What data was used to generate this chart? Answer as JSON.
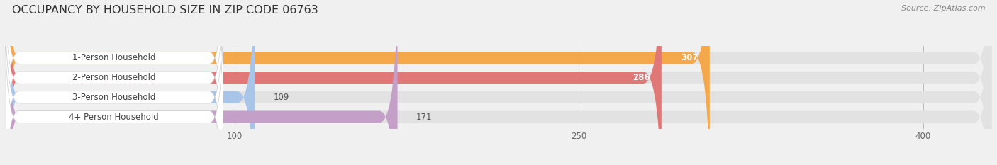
{
  "title": "OCCUPANCY BY HOUSEHOLD SIZE IN ZIP CODE 06763",
  "source": "Source: ZipAtlas.com",
  "categories": [
    "1-Person Household",
    "2-Person Household",
    "3-Person Household",
    "4+ Person Household"
  ],
  "values": [
    307,
    286,
    109,
    171
  ],
  "bar_colors": [
    "#F5A84A",
    "#E07878",
    "#A8C4E8",
    "#C4A0C8"
  ],
  "background_color": "#f0f0f0",
  "xlim_max": 430,
  "xticks": [
    100,
    250,
    400
  ],
  "title_fontsize": 11.5,
  "label_fontsize": 8.5,
  "value_fontsize": 8.5,
  "source_fontsize": 8,
  "bar_height": 0.62,
  "figsize": [
    14.06,
    2.33
  ],
  "dpi": 100
}
